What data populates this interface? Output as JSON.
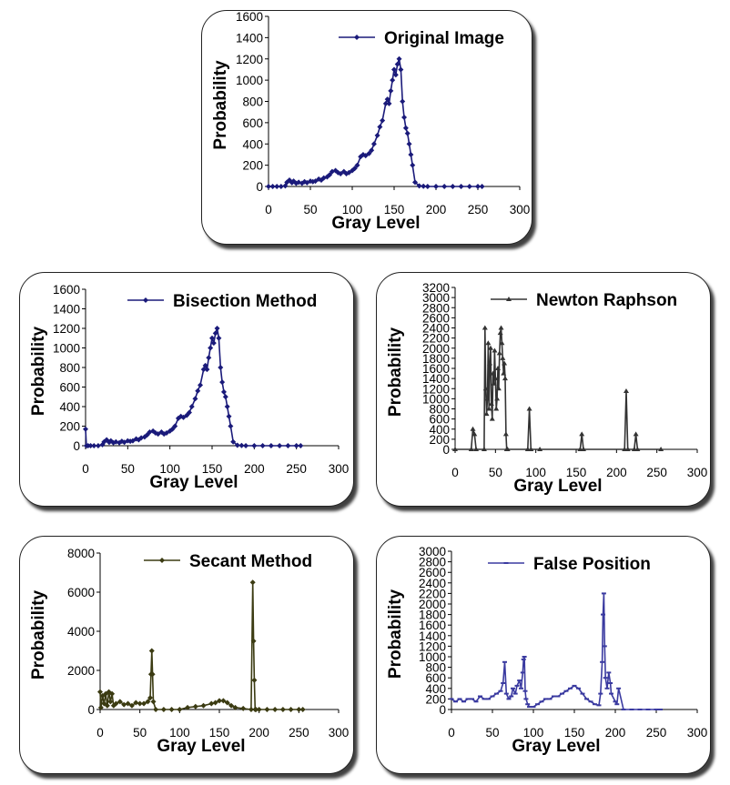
{
  "chart_data": [
    {
      "id": "original",
      "type": "line",
      "title": "Original Image",
      "xlabel": "Gray Level",
      "ylabel": "Probability",
      "color": "#1a1a7a",
      "marker": "diamond",
      "xlim": [
        0,
        300
      ],
      "ylim": [
        0,
        1600
      ],
      "xticks": [
        0,
        50,
        100,
        150,
        200,
        250,
        300
      ],
      "yticks": [
        0,
        200,
        400,
        600,
        800,
        1000,
        1200,
        1400,
        1600
      ],
      "series": [
        {
          "name": "Original Image",
          "x": [
            0,
            5,
            10,
            15,
            20,
            22,
            25,
            28,
            30,
            33,
            36,
            40,
            43,
            46,
            50,
            53,
            56,
            60,
            63,
            66,
            70,
            73,
            76,
            80,
            83,
            86,
            90,
            93,
            96,
            100,
            103,
            106,
            110,
            113,
            116,
            120,
            123,
            126,
            130,
            133,
            136,
            140,
            142,
            144,
            146,
            148,
            150,
            152,
            154,
            156,
            158,
            160,
            162,
            164,
            166,
            168,
            170,
            172,
            175,
            180,
            185,
            190,
            200,
            210,
            220,
            230,
            240,
            250,
            255
          ],
          "y": [
            0,
            0,
            0,
            0,
            5,
            40,
            60,
            35,
            50,
            30,
            40,
            30,
            45,
            35,
            50,
            45,
            50,
            70,
            60,
            80,
            90,
            110,
            140,
            150,
            130,
            120,
            140,
            120,
            130,
            150,
            170,
            200,
            280,
            300,
            290,
            310,
            340,
            400,
            480,
            560,
            620,
            780,
            820,
            780,
            900,
            1000,
            1100,
            1050,
            1150,
            1200,
            1100,
            800,
            650,
            550,
            500,
            400,
            300,
            200,
            40,
            5,
            2,
            0,
            0,
            0,
            0,
            0,
            0,
            0,
            0
          ]
        }
      ]
    },
    {
      "id": "bisection",
      "type": "line",
      "title": "Bisection Method",
      "xlabel": "Gray Level",
      "ylabel": "Probability",
      "color": "#1a1a7a",
      "marker": "diamond",
      "xlim": [
        0,
        300
      ],
      "ylim": [
        0,
        1600
      ],
      "xticks": [
        0,
        50,
        100,
        150,
        200,
        250,
        300
      ],
      "yticks": [
        0,
        200,
        400,
        600,
        800,
        1000,
        1200,
        1400,
        1600
      ],
      "series": [
        {
          "name": "Bisection Method",
          "x": [
            0,
            1,
            3,
            6,
            10,
            15,
            20,
            22,
            25,
            28,
            30,
            33,
            36,
            40,
            43,
            46,
            50,
            53,
            56,
            60,
            63,
            66,
            70,
            73,
            76,
            80,
            83,
            86,
            90,
            93,
            96,
            100,
            103,
            106,
            110,
            113,
            116,
            120,
            123,
            126,
            130,
            133,
            136,
            140,
            142,
            144,
            146,
            148,
            150,
            152,
            154,
            156,
            158,
            160,
            162,
            164,
            166,
            168,
            170,
            172,
            175,
            180,
            185,
            190,
            200,
            210,
            220,
            230,
            240,
            250,
            255
          ],
          "y": [
            170,
            0,
            0,
            0,
            0,
            0,
            10,
            40,
            60,
            35,
            50,
            30,
            40,
            30,
            45,
            35,
            50,
            45,
            50,
            70,
            60,
            80,
            90,
            110,
            140,
            150,
            130,
            120,
            140,
            120,
            130,
            150,
            170,
            200,
            280,
            300,
            290,
            310,
            340,
            400,
            480,
            560,
            620,
            780,
            820,
            780,
            900,
            1000,
            1100,
            1050,
            1150,
            1200,
            1100,
            800,
            650,
            550,
            500,
            400,
            300,
            200,
            40,
            5,
            2,
            0,
            0,
            0,
            0,
            0,
            0,
            0,
            0
          ]
        }
      ]
    },
    {
      "id": "newton",
      "type": "line",
      "title": "Newton Raphson",
      "xlabel": "Gray Level",
      "ylabel": "Probability",
      "color": "#333333",
      "marker": "triangle",
      "xlim": [
        0,
        300
      ],
      "ylim": [
        0,
        3200
      ],
      "xticks": [
        0,
        50,
        100,
        150,
        200,
        250,
        300
      ],
      "yticks": [
        0,
        200,
        400,
        600,
        800,
        1000,
        1200,
        1400,
        1600,
        1800,
        2000,
        2200,
        2400,
        2600,
        2800,
        3000,
        3200
      ],
      "series": [
        {
          "name": "Newton Raphson",
          "x": [
            0,
            20,
            22,
            24,
            26,
            36,
            37,
            38,
            39,
            40,
            41,
            42,
            43,
            44,
            45,
            46,
            47,
            48,
            49,
            50,
            51,
            52,
            53,
            54,
            55,
            56,
            57,
            58,
            59,
            60,
            61,
            62,
            63,
            64,
            65,
            90,
            92,
            94,
            105,
            155,
            157,
            159,
            210,
            212,
            214,
            222,
            224,
            226,
            255
          ],
          "y": [
            0,
            0,
            400,
            300,
            0,
            0,
            2400,
            1200,
            700,
            1000,
            2100,
            800,
            1700,
            2000,
            900,
            600,
            1500,
            1300,
            1950,
            1400,
            800,
            1000,
            1600,
            1200,
            1900,
            2300,
            2400,
            2100,
            1800,
            1500,
            1700,
            1400,
            300,
            0,
            0,
            0,
            800,
            0,
            0,
            0,
            300,
            0,
            0,
            1150,
            0,
            0,
            300,
            0,
            0
          ]
        }
      ]
    },
    {
      "id": "secant",
      "type": "line",
      "title": "Secant Method",
      "xlabel": "Gray Level",
      "ylabel": "Probability",
      "color": "#3b3b12",
      "marker": "diamond",
      "xlim": [
        0,
        300
      ],
      "ylim": [
        0,
        8000
      ],
      "xticks": [
        0,
        50,
        100,
        150,
        200,
        250,
        300
      ],
      "yticks": [
        0,
        2000,
        4000,
        6000,
        8000
      ],
      "series": [
        {
          "name": "Secant Method",
          "x": [
            0,
            1,
            3,
            5,
            7,
            9,
            11,
            13,
            15,
            17,
            20,
            25,
            30,
            35,
            40,
            45,
            50,
            55,
            60,
            63,
            64,
            65,
            66,
            67,
            70,
            80,
            90,
            100,
            110,
            120,
            130,
            140,
            145,
            150,
            155,
            160,
            165,
            170,
            180,
            190,
            192,
            193,
            194,
            195,
            196,
            200,
            210,
            220,
            230,
            240,
            250,
            255
          ],
          "y": [
            900,
            100,
            700,
            300,
            800,
            200,
            900,
            400,
            800,
            200,
            300,
            400,
            250,
            300,
            200,
            350,
            300,
            300,
            400,
            600,
            1800,
            3000,
            1800,
            400,
            0,
            0,
            0,
            0,
            100,
            150,
            200,
            300,
            350,
            450,
            450,
            350,
            200,
            100,
            50,
            0,
            6500,
            3500,
            1500,
            0,
            0,
            0,
            0,
            0,
            0,
            0,
            0,
            0
          ]
        }
      ]
    },
    {
      "id": "falseposition",
      "type": "line",
      "title": "False Position",
      "xlabel": "Gray Level",
      "ylabel": "Probability",
      "color": "#3a3aa0",
      "marker": "dash",
      "xlim": [
        0,
        300
      ],
      "ylim": [
        0,
        3000
      ],
      "xticks": [
        0,
        50,
        100,
        150,
        200,
        250,
        300
      ],
      "yticks": [
        0,
        200,
        400,
        600,
        800,
        1000,
        1200,
        1400,
        1600,
        1800,
        2000,
        2200,
        2400,
        2600,
        2800,
        3000
      ],
      "series": [
        {
          "name": "False Position",
          "x": [
            0,
            5,
            10,
            15,
            20,
            25,
            30,
            35,
            40,
            45,
            50,
            55,
            60,
            63,
            65,
            67,
            70,
            73,
            75,
            78,
            80,
            83,
            85,
            87,
            88,
            89,
            90,
            91,
            93,
            95,
            100,
            105,
            110,
            115,
            120,
            125,
            130,
            135,
            140,
            145,
            150,
            155,
            160,
            165,
            170,
            175,
            180,
            182,
            184,
            185,
            186,
            187,
            188,
            190,
            192,
            194,
            195,
            200,
            202,
            204,
            210,
            220,
            230,
            240,
            250,
            255
          ],
          "y": [
            200,
            150,
            200,
            150,
            200,
            200,
            150,
            250,
            200,
            200,
            250,
            300,
            350,
            500,
            900,
            300,
            200,
            250,
            400,
            300,
            450,
            550,
            400,
            700,
            950,
            1000,
            350,
            200,
            100,
            50,
            50,
            100,
            150,
            200,
            200,
            250,
            250,
            300,
            350,
            400,
            450,
            400,
            300,
            200,
            150,
            100,
            80,
            300,
            900,
            1800,
            2200,
            1200,
            600,
            400,
            700,
            500,
            300,
            150,
            100,
            400,
            0,
            0,
            0,
            0,
            0,
            0
          ]
        }
      ]
    }
  ]
}
